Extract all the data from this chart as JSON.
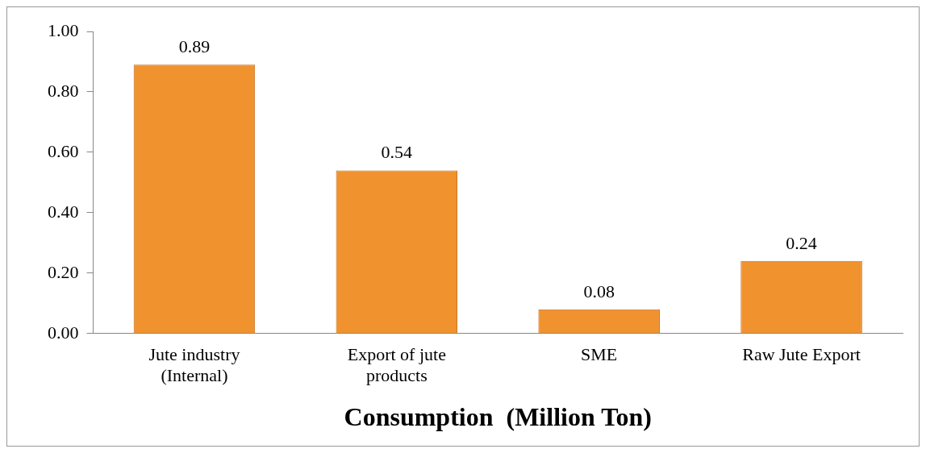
{
  "chart_data": {
    "type": "bar",
    "xlabel": "Consumption  (Million Ton)",
    "categories": [
      "Jute industry (Internal)",
      "Export of jute products",
      "SME",
      "Raw Jute Export"
    ],
    "values": [
      0.89,
      0.54,
      0.08,
      0.24
    ],
    "color": "#f0922e",
    "ylim": [
      0,
      1
    ],
    "yticks": [
      {
        "value": 0,
        "label": "0.00"
      },
      {
        "value": 0.2,
        "label": "0.20"
      },
      {
        "value": 0.4,
        "label": "0.40"
      },
      {
        "value": 0.6,
        "label": "0.60"
      },
      {
        "value": 0.8,
        "label": "0.80"
      },
      {
        "value": 1,
        "label": "1.00"
      }
    ],
    "grid": false,
    "data_labels": true
  }
}
